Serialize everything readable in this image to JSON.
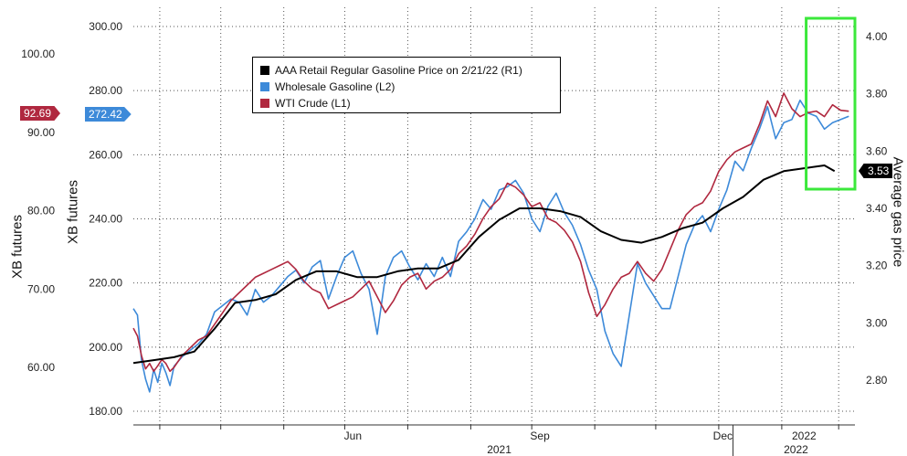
{
  "chart_data": {
    "type": "line",
    "title": "",
    "legend": {
      "placement": "top-center",
      "entries": [
        {
          "label": "AAA Retail Regular Gasoline Price on 2/21/22 (R1)",
          "color": "#000000"
        },
        {
          "label": "Wholesale Gasoline (L2)",
          "color": "#3d8ad9"
        },
        {
          "label": "WTI Crude (L1)",
          "color": "#b0283f"
        }
      ]
    },
    "axes": {
      "left1": {
        "label": "XB futures",
        "ticks": [
          "60.00",
          "70.00",
          "80.00",
          "90.00",
          "100.00"
        ],
        "range": [
          55,
          103
        ]
      },
      "left2": {
        "label": "XB futures",
        "ticks": [
          "180.00",
          "200.00",
          "220.00",
          "240.00",
          "260.00",
          "280.00",
          "300.00"
        ],
        "range": [
          174,
          304
        ]
      },
      "right1": {
        "label": "Average gas price",
        "ticks": [
          "2.80",
          "3.00",
          "3.20",
          "3.40",
          "3.60",
          "3.80",
          "4.00"
        ],
        "range": [
          2.72,
          4.1
        ]
      },
      "x": {
        "ticks": [
          "Jun",
          "Sep",
          "Dec",
          "2022"
        ],
        "year_labels": [
          "2021",
          "2022"
        ]
      }
    },
    "last_values": {
      "wti": {
        "value": "92.69",
        "color": "#b0283f"
      },
      "wholesale": {
        "value": "272.42",
        "color": "#3d8ad9"
      },
      "retail": {
        "value": "3.53",
        "color": "#000000"
      }
    },
    "highlight": {
      "color": "#3be83b",
      "description": ""
    },
    "x_range": {
      "start_day": 0,
      "end_day": 355
    },
    "series": [
      {
        "name": "Wholesale Gasoline (L2)",
        "axis": "left2",
        "color": "#3d8ad9",
        "x": [
          0,
          2,
          4,
          6,
          8,
          10,
          12,
          14,
          16,
          18,
          20,
          24,
          28,
          32,
          36,
          40,
          44,
          48,
          52,
          56,
          60,
          64,
          68,
          72,
          76,
          80,
          84,
          88,
          92,
          96,
          100,
          104,
          108,
          112,
          116,
          120,
          124,
          128,
          132,
          136,
          140,
          144,
          148,
          152,
          156,
          160,
          164,
          168,
          172,
          176,
          180,
          184,
          188,
          192,
          196,
          200,
          204,
          208,
          212,
          216,
          220,
          224,
          228,
          232,
          236,
          240,
          244,
          248,
          252,
          256,
          260,
          264,
          268,
          272,
          276,
          280,
          284,
          288,
          292,
          296,
          300,
          304,
          308,
          312,
          316,
          320,
          324,
          328,
          332,
          336,
          340,
          344,
          348,
          352
        ],
        "values": [
          212,
          210,
          196,
          190,
          186,
          193,
          189,
          195,
          192,
          188,
          194,
          197,
          199,
          201,
          204,
          211,
          213,
          215,
          214,
          210,
          218,
          214,
          216,
          219,
          222,
          224,
          220,
          225,
          227,
          215,
          222,
          228,
          230,
          223,
          218,
          204,
          222,
          228,
          230,
          225,
          221,
          226,
          222,
          228,
          222,
          233,
          236,
          240,
          246,
          243,
          249,
          250,
          252,
          248,
          240,
          236,
          244,
          248,
          242,
          238,
          232,
          224,
          218,
          205,
          198,
          194,
          210,
          226,
          220,
          216,
          212,
          212,
          222,
          232,
          238,
          241,
          236,
          243,
          249,
          258,
          255,
          262,
          268,
          275,
          265,
          270,
          271,
          277,
          273,
          272,
          268,
          270,
          271,
          272
        ]
      },
      {
        "name": "WTI Crude (L1)",
        "axis": "left1",
        "color": "#b0283f",
        "x": [
          0,
          2,
          4,
          6,
          8,
          10,
          12,
          14,
          16,
          18,
          20,
          24,
          28,
          32,
          36,
          40,
          44,
          48,
          52,
          56,
          60,
          64,
          68,
          72,
          76,
          80,
          84,
          88,
          92,
          96,
          100,
          104,
          108,
          112,
          116,
          120,
          124,
          128,
          132,
          136,
          140,
          144,
          148,
          152,
          156,
          160,
          164,
          168,
          172,
          176,
          180,
          184,
          188,
          192,
          196,
          200,
          204,
          208,
          212,
          216,
          220,
          224,
          228,
          232,
          236,
          240,
          244,
          248,
          252,
          256,
          260,
          264,
          268,
          272,
          276,
          280,
          284,
          288,
          292,
          296,
          300,
          304,
          308,
          312,
          316,
          320,
          324,
          328,
          332,
          336,
          340,
          344,
          348,
          352
        ],
        "values": [
          65.0,
          64.0,
          61.5,
          59.8,
          60.5,
          59.5,
          60.2,
          61.0,
          60.5,
          59.5,
          60.0,
          61.5,
          62.5,
          63.5,
          64.0,
          65.5,
          67.0,
          68.5,
          69.5,
          70.5,
          71.5,
          72.0,
          72.5,
          73.0,
          73.5,
          72.5,
          71.0,
          70.0,
          69.5,
          67.5,
          68.0,
          68.5,
          69.0,
          70.0,
          71.0,
          69.0,
          67.0,
          68.5,
          70.5,
          71.5,
          72.0,
          70.0,
          71.0,
          71.5,
          72.5,
          74.5,
          75.5,
          77.0,
          79.0,
          80.5,
          81.5,
          83.5,
          83.0,
          82.0,
          80.5,
          81.0,
          79.0,
          78.5,
          77.5,
          76.0,
          73.5,
          69.5,
          66.5,
          68.0,
          70.0,
          71.5,
          72.0,
          73.5,
          72.0,
          71.0,
          72.5,
          75.0,
          77.5,
          79.5,
          80.5,
          81.0,
          82.5,
          85.0,
          86.5,
          87.5,
          88.0,
          88.5,
          91.0,
          94.0,
          92.0,
          95.0,
          93.0,
          92.0,
          92.5,
          92.7,
          92.0,
          93.5,
          92.8,
          92.69
        ]
      },
      {
        "name": "AAA Retail Regular Gasoline Price on 2/21/22 (R1)",
        "axis": "right1",
        "color": "#000000",
        "x": [
          0,
          10,
          20,
          30,
          40,
          50,
          60,
          70,
          80,
          90,
          100,
          110,
          120,
          130,
          140,
          150,
          160,
          170,
          180,
          190,
          200,
          210,
          220,
          230,
          240,
          250,
          260,
          270,
          280,
          290,
          300,
          310,
          320,
          330,
          340,
          345
        ],
        "values": [
          2.86,
          2.87,
          2.88,
          2.9,
          2.98,
          3.07,
          3.08,
          3.1,
          3.15,
          3.18,
          3.18,
          3.16,
          3.16,
          3.18,
          3.19,
          3.19,
          3.22,
          3.3,
          3.36,
          3.4,
          3.4,
          3.39,
          3.37,
          3.32,
          3.29,
          3.28,
          3.3,
          3.33,
          3.35,
          3.4,
          3.44,
          3.5,
          3.53,
          3.54,
          3.55,
          3.53
        ]
      }
    ]
  }
}
